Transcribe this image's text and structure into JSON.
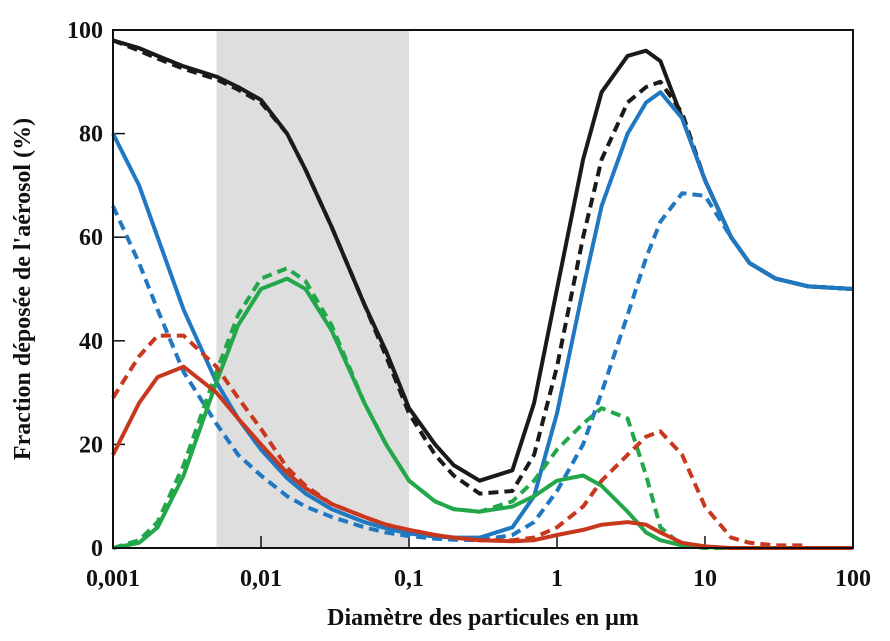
{
  "chart_data": {
    "type": "line",
    "x_label": "Diamètre des particules en μm",
    "y_label": "Fraction déposée de l'aérosol (%)",
    "xlog": true,
    "xlim": [
      0.001,
      100
    ],
    "ylim": [
      0,
      100
    ],
    "xticks": [
      {
        "value": 0.001,
        "label": "0,001"
      },
      {
        "value": 0.01,
        "label": "0,01"
      },
      {
        "value": 0.1,
        "label": "0,1"
      },
      1,
      10,
      100
    ],
    "yticks": [
      0,
      20,
      40,
      60,
      80,
      100
    ],
    "shaded_range": [
      0.005,
      0.1
    ],
    "shade_color": "#dedede",
    "x": [
      0.001,
      0.0015,
      0.002,
      0.003,
      0.005,
      0.007,
      0.01,
      0.015,
      0.02,
      0.03,
      0.05,
      0.07,
      0.1,
      0.15,
      0.2,
      0.3,
      0.5,
      0.7,
      1,
      1.5,
      2,
      3,
      4,
      5,
      7,
      10,
      15,
      20,
      30,
      50,
      100
    ],
    "series": [
      {
        "color": "#1a1a1a",
        "dashed": false,
        "values": [
          98,
          96.5,
          95,
          93,
          91,
          89,
          86.5,
          80,
          73,
          62,
          47,
          38,
          27,
          20,
          16,
          13,
          15,
          28,
          50,
          75,
          88,
          95,
          96,
          94,
          83,
          71,
          60,
          55,
          52,
          50.5,
          50
        ]
      },
      {
        "color": "#1a1a1a",
        "dashed": true,
        "values": [
          98,
          96,
          94.5,
          92.5,
          90.5,
          88.5,
          86,
          80,
          73,
          62,
          47,
          37,
          26,
          18,
          14,
          10.5,
          11,
          18,
          35,
          60,
          75,
          86,
          89,
          90,
          84,
          71,
          60,
          55,
          52,
          50.5,
          50
        ]
      },
      {
        "color": "#1f78c1",
        "dashed": false,
        "values": [
          80,
          70,
          60,
          46,
          32,
          25,
          19,
          13.5,
          10.5,
          7.5,
          5,
          3.8,
          2.8,
          2.2,
          2,
          2,
          4,
          10,
          26,
          50,
          66,
          80,
          86,
          88,
          83,
          71,
          60,
          55,
          52,
          50.5,
          50
        ]
      },
      {
        "color": "#1f78c1",
        "dashed": true,
        "values": [
          66,
          55,
          46,
          34,
          24,
          18,
          14,
          10,
          8,
          6,
          4,
          3,
          2.3,
          1.8,
          1.6,
          1.5,
          2.5,
          5,
          11,
          20,
          30,
          45,
          56,
          63,
          68.5,
          68,
          60,
          55,
          52,
          50.5,
          50
        ]
      },
      {
        "color": "#22a84a",
        "dashed": false,
        "values": [
          0,
          1,
          4,
          14,
          32,
          43,
          50,
          52,
          50,
          42,
          28,
          20,
          13,
          9,
          7.5,
          7,
          8,
          10,
          13,
          14,
          12,
          7,
          3,
          1.5,
          0.5,
          0.2,
          0,
          0,
          0,
          0,
          0
        ]
      },
      {
        "color": "#22a84a",
        "dashed": true,
        "values": [
          0,
          1.5,
          5,
          16,
          34,
          45,
          52,
          54,
          51.5,
          43,
          28,
          20,
          13,
          9,
          7.5,
          7,
          9,
          13,
          19,
          24,
          27,
          25,
          14,
          4,
          0.5,
          0,
          0,
          0,
          0,
          0,
          0
        ]
      },
      {
        "color": "#c8381e",
        "dashed": false,
        "values": [
          18,
          28,
          33,
          35,
          30,
          25,
          20,
          14.5,
          11.5,
          8.5,
          6,
          4.5,
          3.5,
          2.5,
          2,
          1.5,
          1.3,
          1.5,
          2.5,
          3.5,
          4.5,
          5,
          4.5,
          3,
          1,
          0.3,
          0,
          0,
          0,
          0,
          0
        ]
      },
      {
        "color": "#c8381e",
        "dashed": true,
        "values": [
          29,
          37,
          41,
          41,
          35,
          29,
          23,
          15.5,
          12,
          8.5,
          6,
          4.5,
          3.5,
          2.5,
          2,
          1.5,
          1.5,
          2,
          4,
          8,
          13,
          18,
          21.5,
          22.5,
          18,
          8,
          2,
          1,
          0.5,
          0.5,
          null
        ]
      }
    ]
  }
}
